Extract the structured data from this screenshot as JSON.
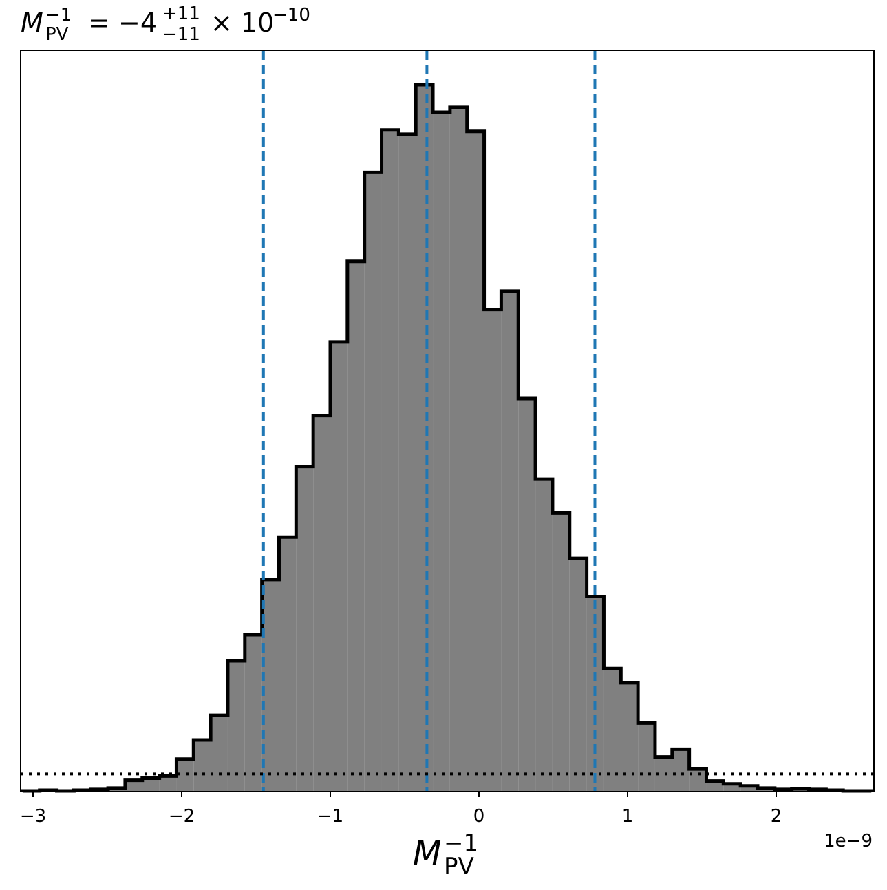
{
  "chart_data": {
    "type": "bar",
    "title": {
      "var": "M",
      "var_sub": "PV",
      "var_sup": "−1",
      "equals": "=",
      "value": "−4",
      "err_plus": "+11",
      "err_minus": "−11",
      "multiplier": "× 10",
      "exponent": "−10"
    },
    "xlabel": {
      "var": "M",
      "var_sub": "PV",
      "var_sup": "−1"
    },
    "ylabel": "",
    "x_offset_label": "1e−9",
    "xlim": [
      -3.07,
      2.64
    ],
    "ylim": [
      0,
      1.0
    ],
    "grid": false,
    "x_ticks": [
      {
        "value": -3,
        "label": "−3"
      },
      {
        "value": -2,
        "label": "−2"
      },
      {
        "value": -1,
        "label": "−1"
      },
      {
        "value": 0,
        "label": "0"
      },
      {
        "value": 1,
        "label": "1"
      },
      {
        "value": 2,
        "label": "2"
      }
    ],
    "bin_edges": [
      -3.07,
      -2.955,
      -2.84,
      -2.725,
      -2.61,
      -2.495,
      -2.38,
      -2.265,
      -2.15,
      -2.035,
      -1.92,
      -1.805,
      -1.69,
      -1.575,
      -1.46,
      -1.345,
      -1.23,
      -1.115,
      -1.0,
      -0.885,
      -0.77,
      -0.655,
      -0.54,
      -0.425,
      -0.31,
      -0.195,
      -0.08,
      0.035,
      0.15,
      0.265,
      0.38,
      0.495,
      0.61,
      0.725,
      0.84,
      0.955,
      1.07,
      1.185,
      1.3,
      1.415,
      1.53,
      1.645,
      1.76,
      1.875,
      1.99,
      2.105,
      2.22,
      2.335,
      2.45,
      2.565,
      2.64
    ],
    "counts": [
      0.001,
      0.002,
      0.001,
      0.002,
      0.003,
      0.005,
      0.016,
      0.019,
      0.022,
      0.046,
      0.073,
      0.108,
      0.185,
      0.222,
      0.3,
      0.36,
      0.46,
      0.532,
      0.636,
      0.75,
      0.876,
      0.936,
      0.93,
      1.0,
      0.961,
      0.968,
      0.934,
      0.682,
      0.708,
      0.556,
      0.442,
      0.394,
      0.33,
      0.276,
      0.174,
      0.154,
      0.097,
      0.049,
      0.06,
      0.032,
      0.015,
      0.011,
      0.008,
      0.005,
      0.003,
      0.004,
      0.003,
      0.002,
      0.001,
      0.001
    ],
    "fill_color": "#808080",
    "edge_color": "#000000",
    "quantile_lines": {
      "values": [
        -1.45,
        -0.35,
        0.78
      ],
      "color": "#1f77b4",
      "style": "dashed"
    },
    "hline": {
      "value": 0.025,
      "color": "#000000",
      "style": "dotted"
    }
  }
}
